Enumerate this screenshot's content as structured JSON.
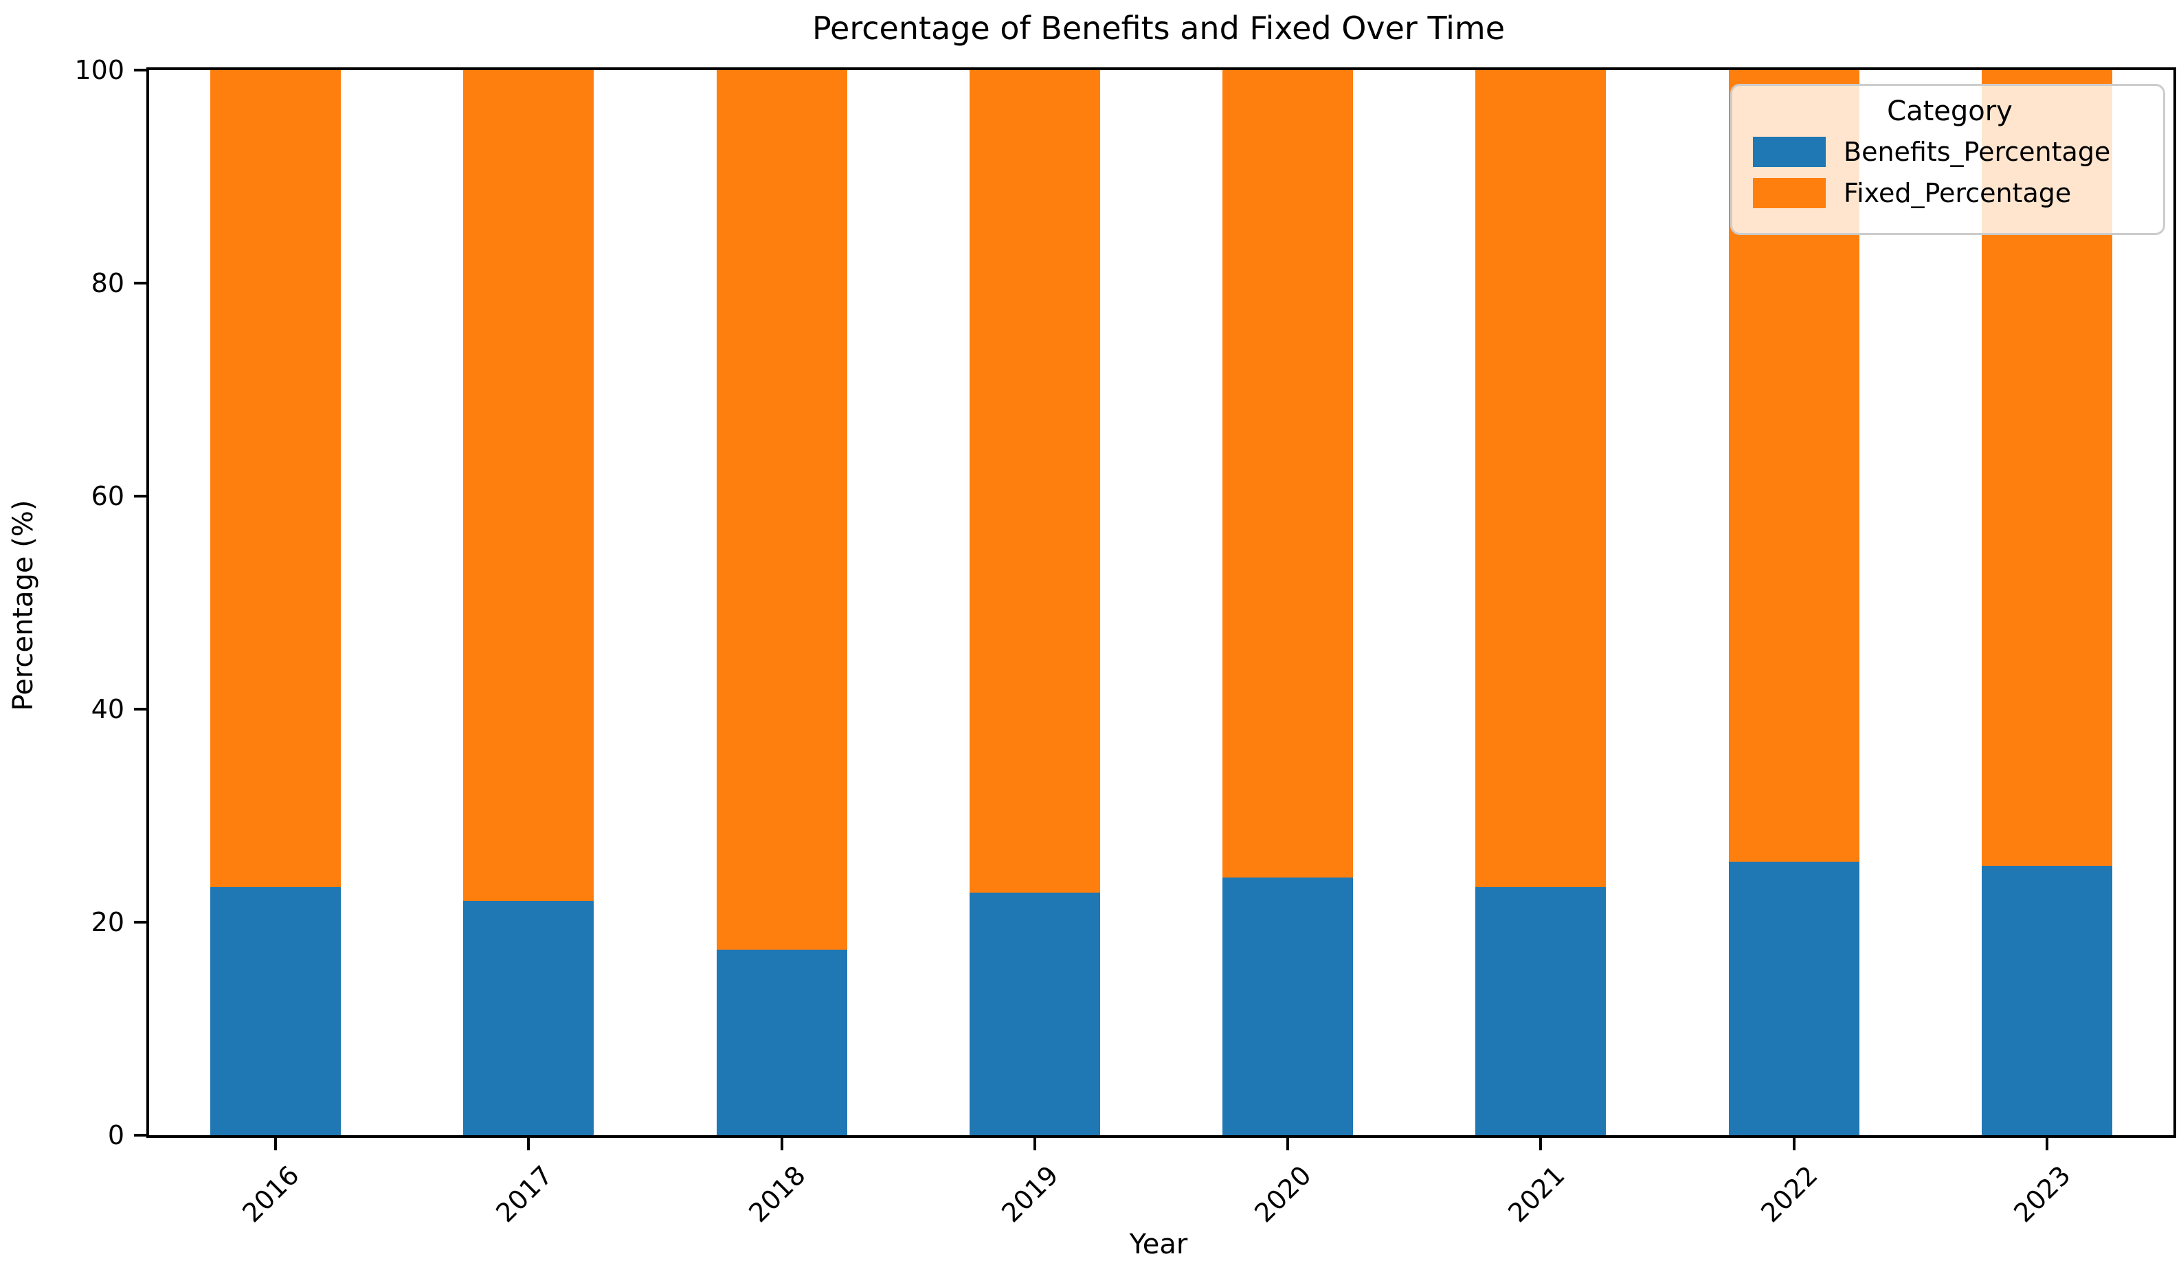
{
  "chart_data": {
    "type": "bar",
    "stacked": true,
    "title": "Percentage of Benefits and Fixed Over Time",
    "xlabel": "Year",
    "ylabel": "Percentage (%)",
    "ylim": [
      0,
      100
    ],
    "yticks": [
      0,
      20,
      40,
      60,
      80,
      100
    ],
    "categories": [
      "2016",
      "2017",
      "2018",
      "2019",
      "2020",
      "2021",
      "2022",
      "2023"
    ],
    "series": [
      {
        "name": "Benefits_Percentage",
        "color": "#1f77b4",
        "values": [
          23.3,
          22.0,
          17.4,
          22.8,
          24.2,
          23.3,
          25.7,
          25.3
        ]
      },
      {
        "name": "Fixed_Percentage",
        "color": "#ff7f0e",
        "values": [
          76.7,
          78.0,
          82.6,
          77.2,
          75.8,
          76.7,
          74.3,
          74.7
        ]
      }
    ],
    "legend": {
      "title": "Category",
      "position": "upper right"
    },
    "grid": false,
    "colors": {
      "benefits": "#1f77b4",
      "fixed": "#ff7f0e",
      "spine": "#000000",
      "background": "#ffffff"
    }
  }
}
